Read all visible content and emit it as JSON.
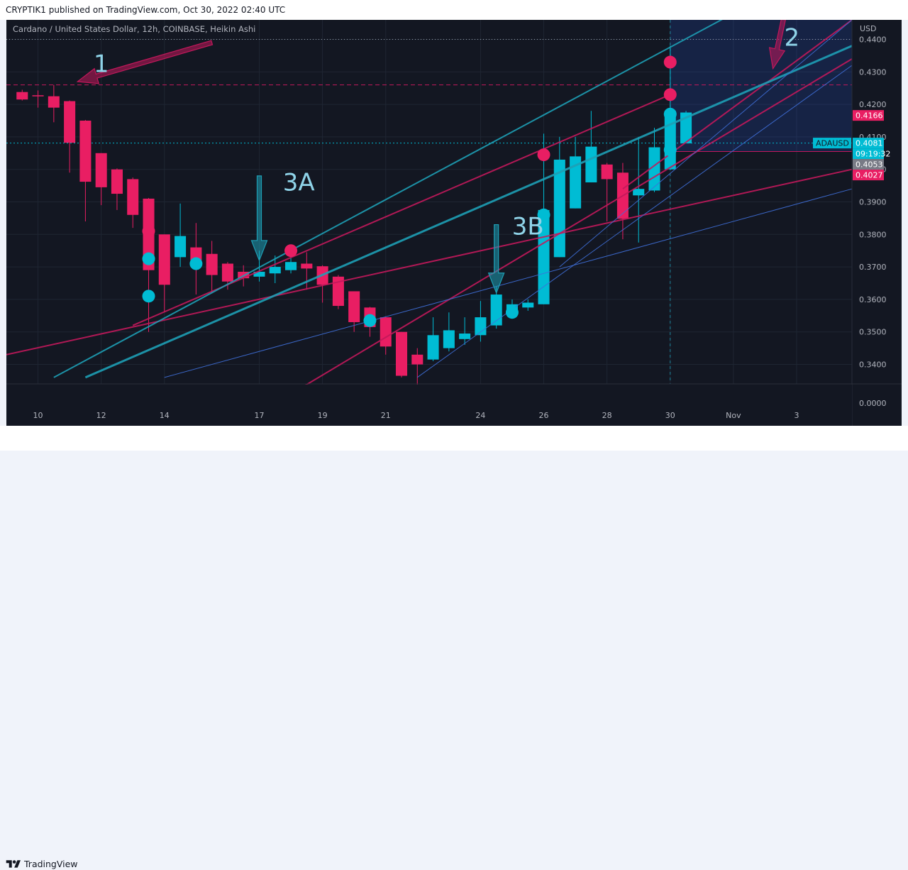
{
  "header": {
    "publish_line": "CRYPTIK1 published on TradingView.com, Oct 30, 2022 02:40 UTC"
  },
  "symbol_line": "Cardano / United States Dollar, 12h, COINBASE, Heikin Ashi",
  "footer": {
    "brand": "TradingView"
  },
  "colors": {
    "background": "#131722",
    "up": "#00bcd4",
    "down": "#e91e63",
    "channel": "#1e9fb5",
    "resistance": "#c2185b"
  },
  "chart_data": {
    "type": "candlestick",
    "candle_style": "Heikin Ashi",
    "price_unit": "USD",
    "ylim": [
      0.334,
      0.446
    ],
    "y_ticks": [
      "0.4400",
      "0.4300",
      "0.4200",
      "0.4100",
      "0.4000",
      "0.3900",
      "0.3800",
      "0.3700",
      "0.3600",
      "0.3500",
      "0.3400"
    ],
    "y_zero_label": "0.0000",
    "x_ticks": [
      {
        "label": "10",
        "t": 1.0
      },
      {
        "label": "12",
        "t": 5.0
      },
      {
        "label": "14",
        "t": 9.0
      },
      {
        "label": "17",
        "t": 15.0
      },
      {
        "label": "19",
        "t": 19.0
      },
      {
        "label": "21",
        "t": 23.0
      },
      {
        "label": "24",
        "t": 29.0
      },
      {
        "label": "26",
        "t": 33.0
      },
      {
        "label": "28",
        "t": 37.0
      },
      {
        "label": "30",
        "t": 41.0
      },
      {
        "label": "Nov",
        "t": 45.0
      },
      {
        "label": "3",
        "t": 49.0
      }
    ],
    "x_range": [
      -1,
      52.5
    ],
    "candles": [
      {
        "t": 0,
        "o": 0.4238,
        "h": 0.4245,
        "l": 0.4212,
        "c": 0.4215
      },
      {
        "t": 1,
        "o": 0.4228,
        "h": 0.4243,
        "l": 0.419,
        "c": 0.4225
      },
      {
        "t": 2,
        "o": 0.4225,
        "h": 0.426,
        "l": 0.4145,
        "c": 0.419
      },
      {
        "t": 3,
        "o": 0.421,
        "h": 0.4212,
        "l": 0.399,
        "c": 0.4082
      },
      {
        "t": 4,
        "o": 0.415,
        "h": 0.4152,
        "l": 0.384,
        "c": 0.3962
      },
      {
        "t": 5,
        "o": 0.405,
        "h": 0.405,
        "l": 0.389,
        "c": 0.3945
      },
      {
        "t": 6,
        "o": 0.4,
        "h": 0.4003,
        "l": 0.3875,
        "c": 0.3925
      },
      {
        "t": 7,
        "o": 0.397,
        "h": 0.3975,
        "l": 0.382,
        "c": 0.386
      },
      {
        "t": 8,
        "o": 0.391,
        "h": 0.3912,
        "l": 0.35,
        "c": 0.369
      },
      {
        "t": 9,
        "o": 0.38,
        "h": 0.38,
        "l": 0.356,
        "c": 0.3645
      },
      {
        "t": 10,
        "o": 0.373,
        "h": 0.3895,
        "l": 0.37,
        "c": 0.3795
      },
      {
        "t": 11,
        "o": 0.376,
        "h": 0.3835,
        "l": 0.3615,
        "c": 0.372
      },
      {
        "t": 12,
        "o": 0.374,
        "h": 0.378,
        "l": 0.362,
        "c": 0.3675
      },
      {
        "t": 13,
        "o": 0.371,
        "h": 0.3715,
        "l": 0.363,
        "c": 0.3655
      },
      {
        "t": 14,
        "o": 0.3685,
        "h": 0.3705,
        "l": 0.364,
        "c": 0.3665
      },
      {
        "t": 15,
        "o": 0.367,
        "h": 0.375,
        "l": 0.3655,
        "c": 0.3685
      },
      {
        "t": 16,
        "o": 0.368,
        "h": 0.3735,
        "l": 0.365,
        "c": 0.37
      },
      {
        "t": 17,
        "o": 0.369,
        "h": 0.3745,
        "l": 0.368,
        "c": 0.3715
      },
      {
        "t": 18,
        "o": 0.371,
        "h": 0.3745,
        "l": 0.363,
        "c": 0.3695
      },
      {
        "t": 19,
        "o": 0.3702,
        "h": 0.3705,
        "l": 0.359,
        "c": 0.3645
      },
      {
        "t": 20,
        "o": 0.367,
        "h": 0.3675,
        "l": 0.357,
        "c": 0.358
      },
      {
        "t": 21,
        "o": 0.3625,
        "h": 0.3625,
        "l": 0.35,
        "c": 0.353
      },
      {
        "t": 22,
        "o": 0.3575,
        "h": 0.3577,
        "l": 0.3485,
        "c": 0.3515
      },
      {
        "t": 23,
        "o": 0.3545,
        "h": 0.3547,
        "l": 0.343,
        "c": 0.3455
      },
      {
        "t": 24,
        "o": 0.35,
        "h": 0.35,
        "l": 0.336,
        "c": 0.3365
      },
      {
        "t": 25,
        "o": 0.343,
        "h": 0.345,
        "l": 0.328,
        "c": 0.34
      },
      {
        "t": 26,
        "o": 0.3415,
        "h": 0.3545,
        "l": 0.341,
        "c": 0.349
      },
      {
        "t": 27,
        "o": 0.345,
        "h": 0.356,
        "l": 0.344,
        "c": 0.3505
      },
      {
        "t": 28,
        "o": 0.3478,
        "h": 0.3545,
        "l": 0.346,
        "c": 0.3495
      },
      {
        "t": 29,
        "o": 0.349,
        "h": 0.3595,
        "l": 0.347,
        "c": 0.3545
      },
      {
        "t": 30,
        "o": 0.352,
        "h": 0.364,
        "l": 0.351,
        "c": 0.3615
      },
      {
        "t": 31,
        "o": 0.3565,
        "h": 0.36,
        "l": 0.355,
        "c": 0.3585
      },
      {
        "t": 32,
        "o": 0.3575,
        "h": 0.36,
        "l": 0.3565,
        "c": 0.359
      },
      {
        "t": 33,
        "o": 0.3585,
        "h": 0.411,
        "l": 0.3585,
        "c": 0.3875
      },
      {
        "t": 34,
        "o": 0.373,
        "h": 0.41,
        "l": 0.373,
        "c": 0.403
      },
      {
        "t": 35,
        "o": 0.388,
        "h": 0.41,
        "l": 0.388,
        "c": 0.404
      },
      {
        "t": 36,
        "o": 0.396,
        "h": 0.418,
        "l": 0.396,
        "c": 0.407
      },
      {
        "t": 37,
        "o": 0.4015,
        "h": 0.402,
        "l": 0.384,
        "c": 0.397
      },
      {
        "t": 38,
        "o": 0.399,
        "h": 0.402,
        "l": 0.3785,
        "c": 0.3848
      },
      {
        "t": 39,
        "o": 0.392,
        "h": 0.41,
        "l": 0.3775,
        "c": 0.394
      },
      {
        "t": 40,
        "o": 0.3935,
        "h": 0.4128,
        "l": 0.393,
        "c": 0.4068
      },
      {
        "t": 41,
        "o": 0.4,
        "h": 0.438,
        "l": 0.4,
        "c": 0.418
      },
      {
        "t": 42,
        "o": 0.408,
        "h": 0.418,
        "l": 0.408,
        "c": 0.4175
      }
    ],
    "signal_dots": [
      {
        "t": 8,
        "price": 0.381,
        "color": "down"
      },
      {
        "t": 8,
        "price": 0.3725,
        "color": "up"
      },
      {
        "t": 8,
        "price": 0.361,
        "color": "up"
      },
      {
        "t": 11,
        "price": 0.371,
        "color": "up"
      },
      {
        "t": 17,
        "price": 0.375,
        "color": "down"
      },
      {
        "t": 22,
        "price": 0.3535,
        "color": "up"
      },
      {
        "t": 31,
        "price": 0.356,
        "color": "up"
      },
      {
        "t": 33,
        "price": 0.386,
        "color": "up"
      },
      {
        "t": 33,
        "price": 0.4045,
        "color": "down"
      },
      {
        "t": 41,
        "price": 0.433,
        "color": "down"
      },
      {
        "t": 41,
        "price": 0.423,
        "color": "down"
      },
      {
        "t": 41,
        "price": 0.417,
        "color": "up"
      },
      {
        "t": 41,
        "price": 0.406,
        "color": "up"
      }
    ],
    "trend_lines": [
      {
        "from": [
          -1.0,
          0.343
        ],
        "to": [
          52.5,
          0.4
        ],
        "color": "resistance",
        "width": 2
      },
      {
        "from": [
          7.0,
          0.352
        ],
        "to": [
          41.0,
          0.423
        ],
        "color": "resistance",
        "width": 2
      },
      {
        "from": [
          16.0,
          0.328
        ],
        "to": [
          52.5,
          0.434
        ],
        "color": "resistance",
        "width": 2
      },
      {
        "from": [
          38.0,
          0.394
        ],
        "to": [
          52.5,
          0.446
        ],
        "color": "resistance",
        "width": 2
      },
      {
        "from": [
          2.0,
          0.336
        ],
        "to": [
          45.0,
          0.448
        ],
        "color": "channel",
        "width": 2
      },
      {
        "from": [
          4.0,
          0.336
        ],
        "to": [
          52.5,
          0.438
        ],
        "color": "channel",
        "width": 3
      },
      {
        "from": [
          9.0,
          0.336
        ],
        "to": [
          52.5,
          0.394
        ],
        "color": "channel_thin",
        "width": 1
      },
      {
        "from": [
          25.0,
          0.336
        ],
        "to": [
          52.5,
          0.432
        ],
        "color": "channel_thin",
        "width": 1
      },
      {
        "from": [
          34.0,
          0.37
        ],
        "to": [
          52.5,
          0.446
        ],
        "color": "channel_thin",
        "width": 1
      }
    ],
    "horizontal_lines": [
      {
        "price": 0.426,
        "style": "dashed",
        "color": "resistance",
        "from_t": -1
      },
      {
        "price": 0.4081,
        "style": "dotted",
        "color": "up",
        "from_t": -1
      },
      {
        "price": 0.4055,
        "style": "solid",
        "color": "resistance",
        "from_t": 41
      }
    ],
    "dotted_level": 0.44,
    "vertical_marker_t": 41,
    "highlight_zone": {
      "t_from": 41,
      "t_to": 52.5,
      "price_from": 0.4055,
      "price_to": 0.446
    },
    "price_labels": [
      {
        "text": "0.4166",
        "price": 0.4166,
        "color": "#e91e63"
      },
      {
        "text": "0.4081",
        "price": 0.4081,
        "color": "#00bcd4"
      },
      {
        "text": "09:19:32",
        "price": 0.40545,
        "color": "#00bcd4"
      },
      {
        "text": "0.4053",
        "price": 0.4053,
        "color": "#787b86"
      },
      {
        "text": "0.4027",
        "price": 0.4027,
        "color": "#e91e63"
      }
    ],
    "ticker_tag": {
      "text": "ADAUSD",
      "price": 0.4081
    },
    "annotations": [
      {
        "text": "1",
        "t": 5.0,
        "price": 0.43,
        "color": "#8fd3e8"
      },
      {
        "text": "2",
        "t": 48.7,
        "price": 0.438,
        "color": "#8fd3e8"
      },
      {
        "text": "3A",
        "t": 17.5,
        "price": 0.3935,
        "color": "#8fd3e8"
      },
      {
        "text": "3B",
        "t": 32.0,
        "price": 0.38,
        "color": "#8fd3e8"
      }
    ],
    "arrows": [
      {
        "from": [
          12.0,
          0.439
        ],
        "to": [
          3.5,
          0.427
        ],
        "color": "#c2185b"
      },
      {
        "from": [
          15.0,
          0.398
        ],
        "to": [
          15.0,
          0.372
        ],
        "color": "#1e9fb5"
      },
      {
        "from": [
          30.0,
          0.383
        ],
        "to": [
          30.0,
          0.362
        ],
        "color": "#1e9fb5"
      },
      {
        "from": [
          48.2,
          0.447
        ],
        "to": [
          47.5,
          0.431
        ],
        "color": "#c2185b"
      }
    ]
  }
}
